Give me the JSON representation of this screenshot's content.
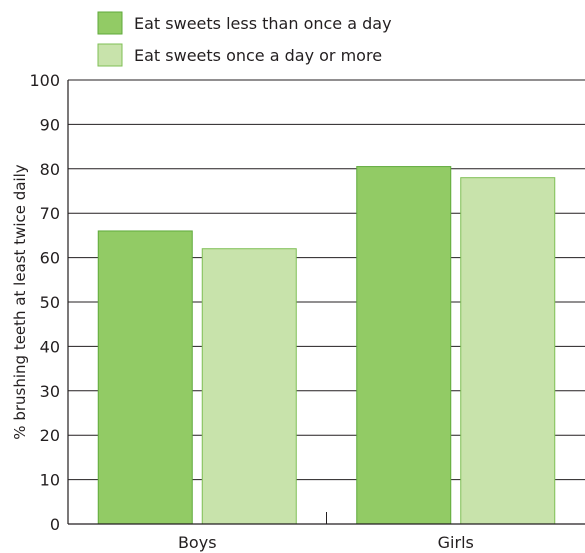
{
  "chart_data": {
    "type": "bar",
    "categories": [
      "Boys",
      "Girls"
    ],
    "series": [
      {
        "name": "Eat sweets less than once a day",
        "values": [
          66,
          80.5
        ]
      },
      {
        "name": "Eat sweets once a day or more",
        "values": [
          62,
          78
        ]
      }
    ],
    "title": "",
    "xlabel": "",
    "ylabel": "% brushing teeth at least twice daily",
    "ylim": [
      0,
      100
    ],
    "yticks": [
      0,
      10,
      20,
      30,
      40,
      50,
      60,
      70,
      80,
      90,
      100
    ],
    "grid": true,
    "legend_position": "top-left",
    "colors": {
      "series": [
        "#92cb65",
        "#c8e3ab"
      ],
      "series_stroke": [
        "#5faa3a",
        "#7fbf55"
      ],
      "axis": "#231f20",
      "grid": "#231f20"
    }
  }
}
